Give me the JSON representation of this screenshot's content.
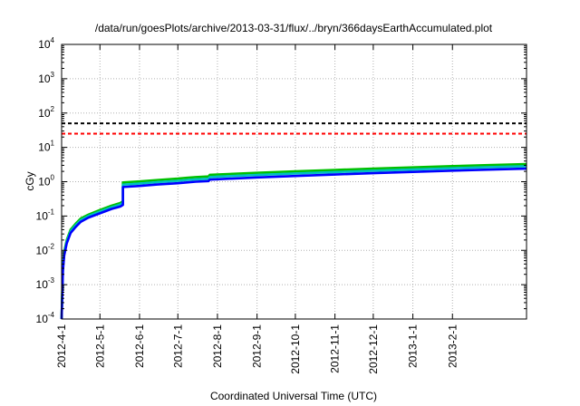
{
  "chart_data": {
    "type": "line",
    "title": "/data/run/goesPlots/archive/2013-03-31/flux/../bryn/366daysEarthAccumulated.plot",
    "xlabel": "Coordinated Universal Time (UTC)",
    "ylabel": "cGy",
    "y_scale": "log",
    "ylim": [
      0.0001,
      10000
    ],
    "xlim": [
      "2012-04-01",
      "2013-03-31"
    ],
    "grid": true,
    "x_ticks": [
      {
        "date": "2012-04-01",
        "label": "2012-4-1"
      },
      {
        "date": "2012-05-01",
        "label": "2012-5-1"
      },
      {
        "date": "2012-06-01",
        "label": "2012-6-1"
      },
      {
        "date": "2012-07-01",
        "label": "2012-7-1"
      },
      {
        "date": "2012-08-01",
        "label": "2012-8-1"
      },
      {
        "date": "2012-09-01",
        "label": "2012-9-1"
      },
      {
        "date": "2012-10-01",
        "label": "2012-10-1"
      },
      {
        "date": "2012-11-01",
        "label": "2012-11-1"
      },
      {
        "date": "2012-12-01",
        "label": "2012-12-1"
      },
      {
        "date": "2013-01-01",
        "label": "2013-1-1"
      },
      {
        "date": "2013-02-01",
        "label": "2013-2-1"
      }
    ],
    "y_ticks": [
      {
        "value": 0.0001,
        "base": "10",
        "exp": "-4"
      },
      {
        "value": 0.001,
        "base": "10",
        "exp": "-3"
      },
      {
        "value": 0.01,
        "base": "10",
        "exp": "-2"
      },
      {
        "value": 0.1,
        "base": "10",
        "exp": "-1"
      },
      {
        "value": 1,
        "base": "10",
        "exp": "0"
      },
      {
        "value": 10,
        "base": "10",
        "exp": "1"
      },
      {
        "value": 100,
        "base": "10",
        "exp": "2"
      },
      {
        "value": 1000,
        "base": "10",
        "exp": "3"
      },
      {
        "value": 10000,
        "base": "10",
        "exp": "4"
      }
    ],
    "thresholds": [
      {
        "value": 50,
        "color": "#000000",
        "style": "dashed"
      },
      {
        "value": 25,
        "color": "#ff0000",
        "style": "dashed"
      }
    ],
    "series": [
      {
        "color": "#00c000",
        "points": [
          [
            "2012-04-01",
            0.0001
          ],
          [
            "2012-04-02",
            0.0035
          ],
          [
            "2012-04-03",
            0.009
          ],
          [
            "2012-04-05",
            0.02
          ],
          [
            "2012-04-08",
            0.04
          ],
          [
            "2012-04-12",
            0.06
          ],
          [
            "2012-04-16",
            0.085
          ],
          [
            "2012-04-22",
            0.11
          ],
          [
            "2012-05-01",
            0.15
          ],
          [
            "2012-05-10",
            0.2
          ],
          [
            "2012-05-17",
            0.24
          ],
          [
            "2012-05-19",
            0.27
          ],
          [
            "2012-05-19",
            0.95
          ],
          [
            "2012-06-01",
            1.02
          ],
          [
            "2012-06-15",
            1.12
          ],
          [
            "2012-07-01",
            1.23
          ],
          [
            "2012-07-08",
            1.3
          ],
          [
            "2012-07-15",
            1.36
          ],
          [
            "2012-07-25",
            1.42
          ],
          [
            "2012-07-26",
            1.58
          ],
          [
            "2012-08-01",
            1.62
          ],
          [
            "2012-09-01",
            1.82
          ],
          [
            "2012-10-01",
            2.0
          ],
          [
            "2012-11-01",
            2.2
          ],
          [
            "2012-12-01",
            2.4
          ],
          [
            "2013-01-01",
            2.62
          ],
          [
            "2013-02-01",
            2.85
          ],
          [
            "2013-03-01",
            3.05
          ],
          [
            "2013-03-31",
            3.25
          ]
        ]
      },
      {
        "color": "#00c0c0",
        "points": [
          [
            "2012-04-01",
            0.0001
          ],
          [
            "2012-04-02",
            0.003
          ],
          [
            "2012-04-03",
            0.008
          ],
          [
            "2012-04-05",
            0.018
          ],
          [
            "2012-04-08",
            0.036
          ],
          [
            "2012-04-12",
            0.054
          ],
          [
            "2012-04-16",
            0.076
          ],
          [
            "2012-04-22",
            0.1
          ],
          [
            "2012-05-01",
            0.135
          ],
          [
            "2012-05-10",
            0.18
          ],
          [
            "2012-05-17",
            0.215
          ],
          [
            "2012-05-19",
            0.24
          ],
          [
            "2012-05-19",
            0.82
          ],
          [
            "2012-06-01",
            0.88
          ],
          [
            "2012-06-15",
            0.97
          ],
          [
            "2012-07-01",
            1.06
          ],
          [
            "2012-07-08",
            1.12
          ],
          [
            "2012-07-15",
            1.17
          ],
          [
            "2012-07-25",
            1.22
          ],
          [
            "2012-07-26",
            1.36
          ],
          [
            "2012-08-01",
            1.4
          ],
          [
            "2012-09-01",
            1.57
          ],
          [
            "2012-10-01",
            1.73
          ],
          [
            "2012-11-01",
            1.9
          ],
          [
            "2012-12-01",
            2.08
          ],
          [
            "2013-01-01",
            2.27
          ],
          [
            "2013-02-01",
            2.47
          ],
          [
            "2013-03-01",
            2.65
          ],
          [
            "2013-03-31",
            2.82
          ]
        ]
      },
      {
        "color": "#0000ff",
        "points": [
          [
            "2012-04-01",
            0.0001
          ],
          [
            "2012-04-02",
            0.0025
          ],
          [
            "2012-04-03",
            0.007
          ],
          [
            "2012-04-05",
            0.016
          ],
          [
            "2012-04-08",
            0.032
          ],
          [
            "2012-04-12",
            0.048
          ],
          [
            "2012-04-16",
            0.068
          ],
          [
            "2012-04-22",
            0.09
          ],
          [
            "2012-05-01",
            0.12
          ],
          [
            "2012-05-10",
            0.16
          ],
          [
            "2012-05-17",
            0.19
          ],
          [
            "2012-05-19",
            0.21
          ],
          [
            "2012-05-19",
            0.7
          ],
          [
            "2012-06-01",
            0.75
          ],
          [
            "2012-06-15",
            0.83
          ],
          [
            "2012-07-01",
            0.9
          ],
          [
            "2012-07-08",
            0.95
          ],
          [
            "2012-07-15",
            1.0
          ],
          [
            "2012-07-25",
            1.04
          ],
          [
            "2012-07-26",
            1.15
          ],
          [
            "2012-08-01",
            1.18
          ],
          [
            "2012-09-01",
            1.33
          ],
          [
            "2012-10-01",
            1.47
          ],
          [
            "2012-11-01",
            1.62
          ],
          [
            "2012-12-01",
            1.77
          ],
          [
            "2013-01-01",
            1.93
          ],
          [
            "2013-02-01",
            2.1
          ],
          [
            "2013-03-01",
            2.25
          ],
          [
            "2013-03-31",
            2.4
          ]
        ]
      }
    ]
  }
}
